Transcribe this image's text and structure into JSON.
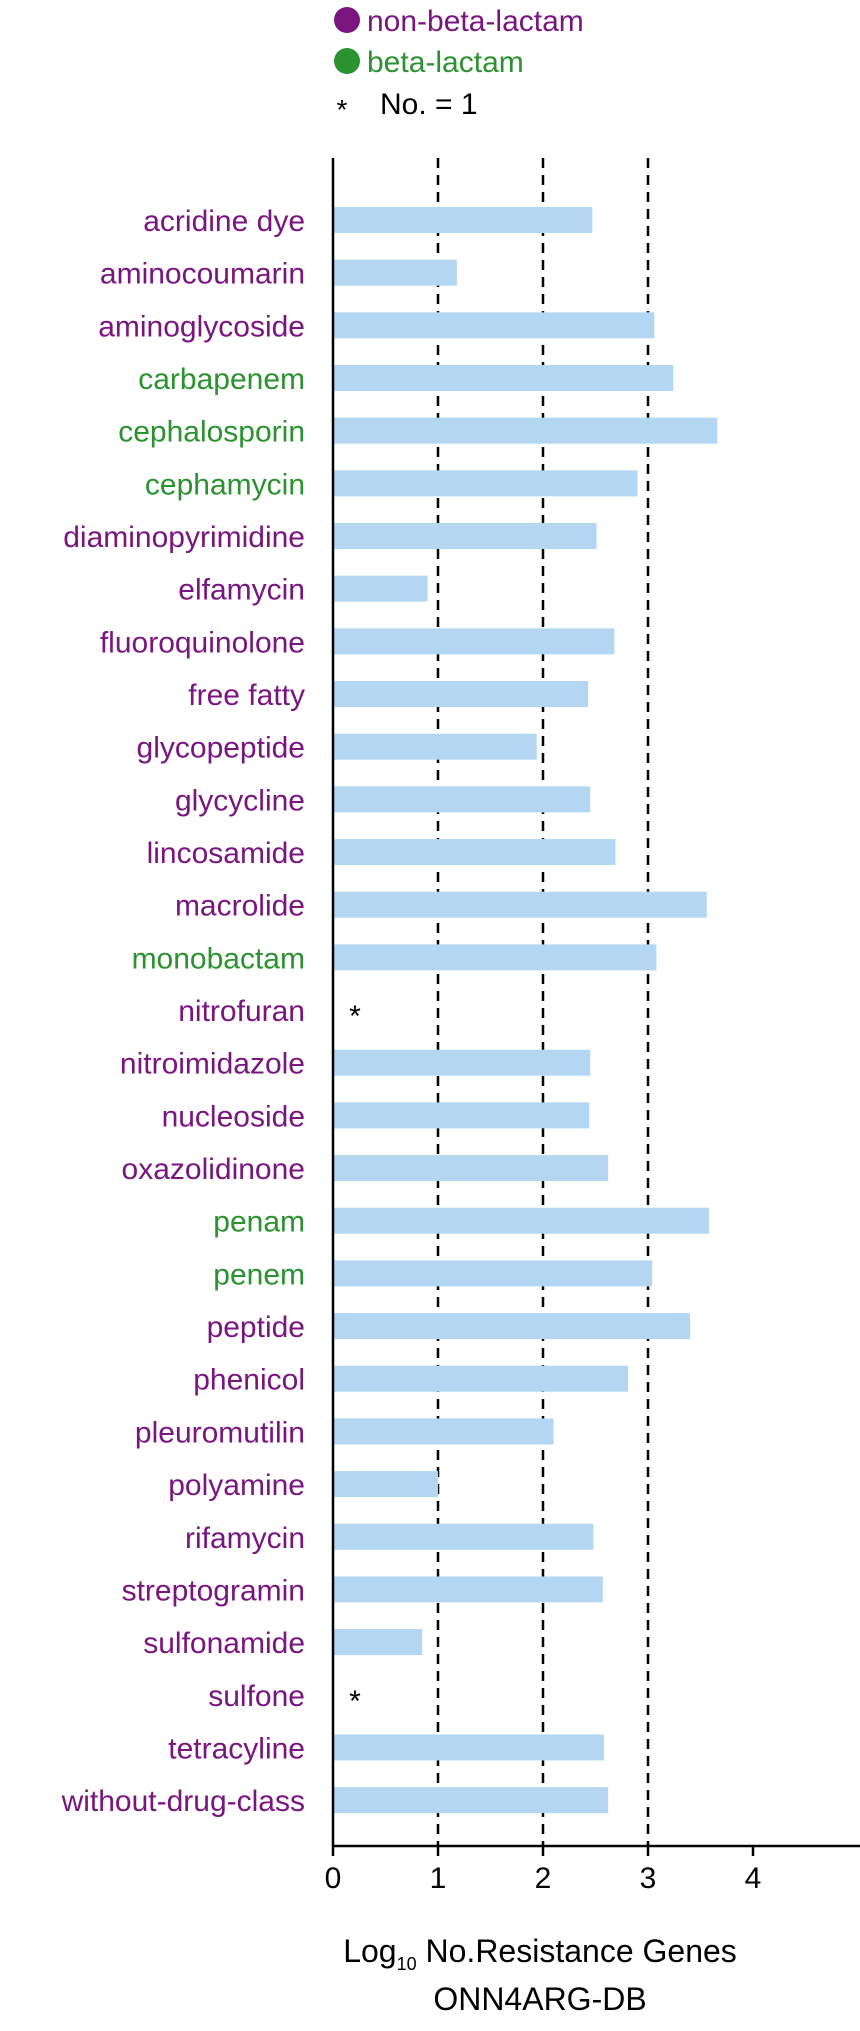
{
  "legend": {
    "items": [
      {
        "label": "non-beta-lactam",
        "color": "#7a1580",
        "marker": "dot"
      },
      {
        "label": "beta-lactam",
        "color": "#2a922e",
        "marker": "dot"
      },
      {
        "label": "No. = 1",
        "color": "#000000",
        "marker": "asterisk"
      }
    ],
    "placement": "top"
  },
  "chart_data": {
    "type": "bar",
    "orientation": "horizontal",
    "bar_color": "#b3d7f2",
    "xlabel_main": "Log",
    "xlabel_sub": "10",
    "xlabel_rest": " No.Resistance Genes",
    "xlabel_line2": "ONN4ARG-DB",
    "xlim": [
      0,
      5
    ],
    "xticks": [
      0,
      1,
      2,
      3,
      4
    ],
    "reference_lines": [
      1,
      2,
      3
    ],
    "categories": [
      {
        "name": "acridine dye",
        "value": 2.47,
        "group": "non-beta-lactam"
      },
      {
        "name": "aminocoumarin",
        "value": 1.18,
        "group": "non-beta-lactam"
      },
      {
        "name": "aminoglycoside",
        "value": 3.06,
        "group": "non-beta-lactam"
      },
      {
        "name": "carbapenem",
        "value": 3.24,
        "group": "beta-lactam"
      },
      {
        "name": "cephalosporin",
        "value": 3.66,
        "group": "beta-lactam"
      },
      {
        "name": "cephamycin",
        "value": 2.9,
        "group": "beta-lactam"
      },
      {
        "name": "diaminopyrimidine",
        "value": 2.51,
        "group": "non-beta-lactam"
      },
      {
        "name": "elfamycin",
        "value": 0.9,
        "group": "non-beta-lactam"
      },
      {
        "name": "fluoroquinolone",
        "value": 2.68,
        "group": "non-beta-lactam"
      },
      {
        "name": "free fatty",
        "value": 2.43,
        "group": "non-beta-lactam"
      },
      {
        "name": "glycopeptide",
        "value": 1.94,
        "group": "non-beta-lactam"
      },
      {
        "name": "glycycline",
        "value": 2.45,
        "group": "non-beta-lactam"
      },
      {
        "name": "lincosamide",
        "value": 2.69,
        "group": "non-beta-lactam"
      },
      {
        "name": "macrolide",
        "value": 3.56,
        "group": "non-beta-lactam"
      },
      {
        "name": "monobactam",
        "value": 3.08,
        "group": "beta-lactam"
      },
      {
        "name": "nitrofuran",
        "value": 0,
        "group": "non-beta-lactam",
        "single": true
      },
      {
        "name": "nitroimidazole",
        "value": 2.45,
        "group": "non-beta-lactam"
      },
      {
        "name": "nucleoside",
        "value": 2.44,
        "group": "non-beta-lactam"
      },
      {
        "name": "oxazolidinone",
        "value": 2.62,
        "group": "non-beta-lactam"
      },
      {
        "name": "penam",
        "value": 3.58,
        "group": "beta-lactam"
      },
      {
        "name": "penem",
        "value": 3.04,
        "group": "beta-lactam"
      },
      {
        "name": "peptide",
        "value": 3.4,
        "group": "non-beta-lactam"
      },
      {
        "name": "phenicol",
        "value": 2.81,
        "group": "non-beta-lactam"
      },
      {
        "name": "pleuromutilin",
        "value": 2.1,
        "group": "non-beta-lactam"
      },
      {
        "name": "polyamine",
        "value": 1.0,
        "group": "non-beta-lactam"
      },
      {
        "name": "rifamycin",
        "value": 2.48,
        "group": "non-beta-lactam"
      },
      {
        "name": "streptogramin",
        "value": 2.57,
        "group": "non-beta-lactam"
      },
      {
        "name": "sulfonamide",
        "value": 0.85,
        "group": "non-beta-lactam"
      },
      {
        "name": "sulfone",
        "value": 0,
        "group": "non-beta-lactam",
        "single": true
      },
      {
        "name": "tetracyline",
        "value": 2.58,
        "group": "non-beta-lactam"
      },
      {
        "name": "without-drug-class",
        "value": 2.62,
        "group": "non-beta-lactam"
      }
    ],
    "single_marker": "*"
  }
}
